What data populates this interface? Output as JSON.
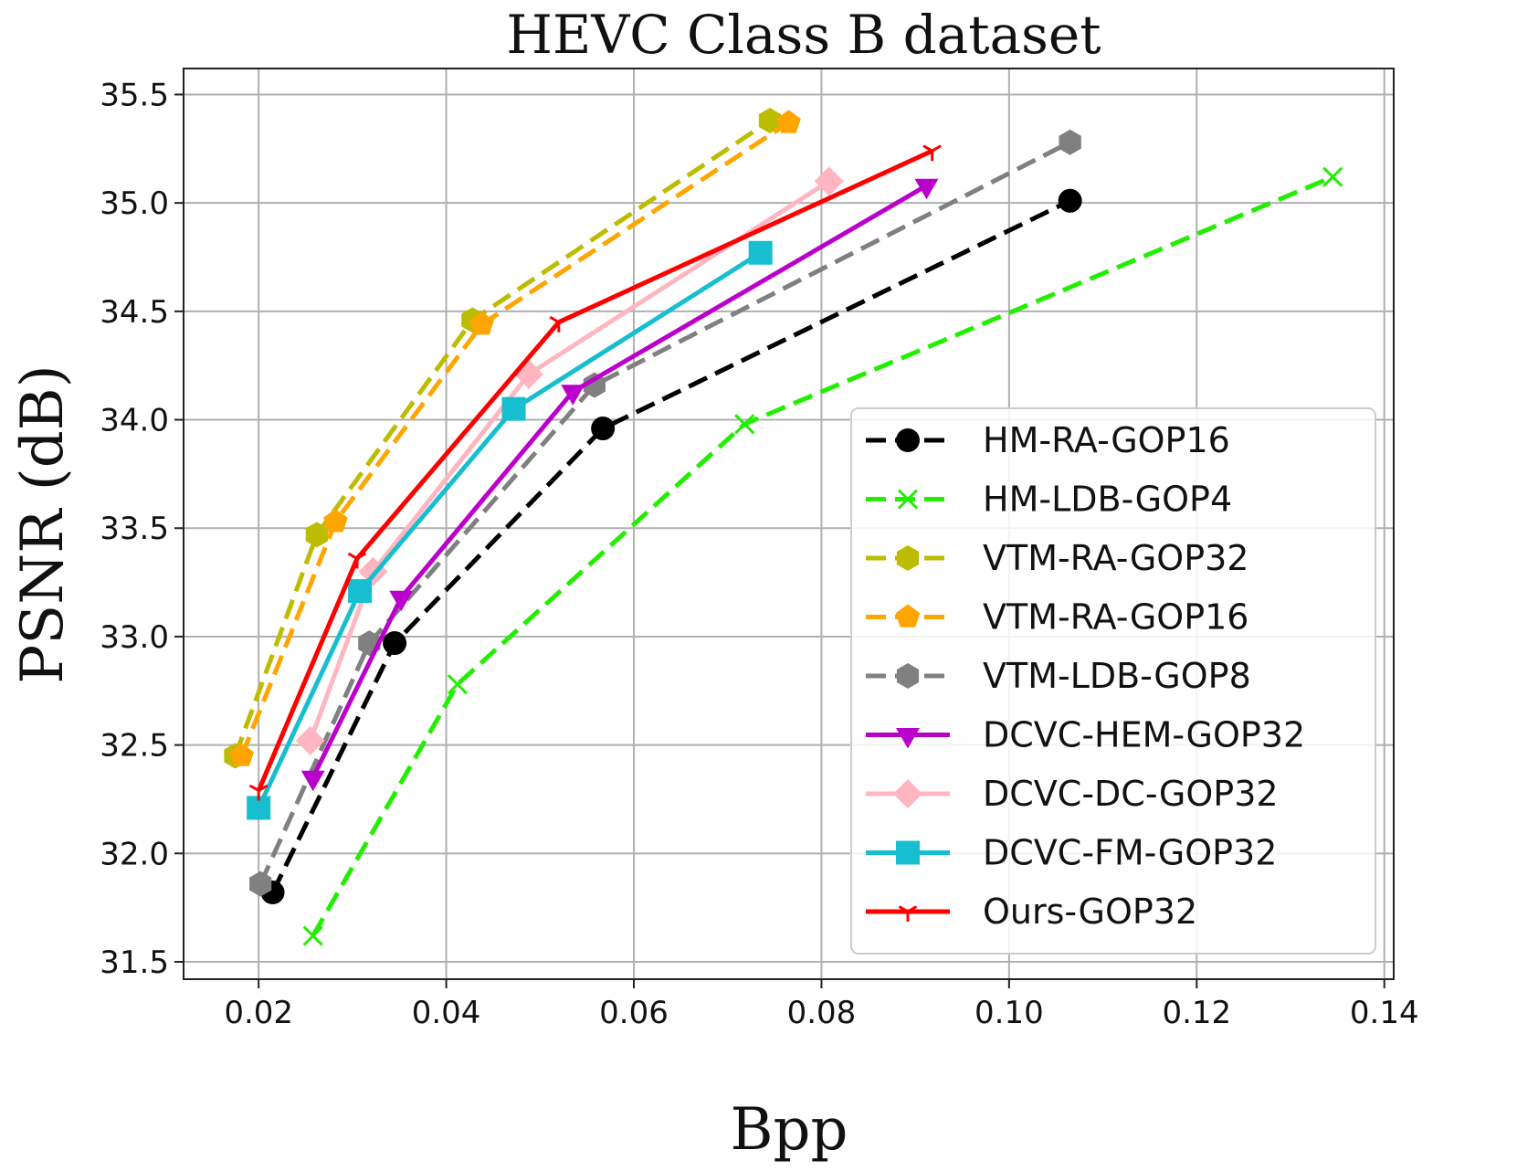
{
  "chart_data": {
    "type": "line",
    "title": "HEVC Class B dataset",
    "xlabel": "Bpp",
    "ylabel": "PSNR (dB)",
    "xlim": [
      0.012,
      0.141
    ],
    "ylim": [
      31.42,
      35.62
    ],
    "xticks": [
      0.02,
      0.04,
      0.06,
      0.08,
      0.1,
      0.12,
      0.14
    ],
    "xtick_labels": [
      "0.02",
      "0.04",
      "0.06",
      "0.08",
      "0.10",
      "0.12",
      "0.14"
    ],
    "yticks": [
      31.5,
      32.0,
      32.5,
      33.0,
      33.5,
      34.0,
      34.5,
      35.0,
      35.5
    ],
    "ytick_labels": [
      "31.5",
      "32.0",
      "32.5",
      "33.0",
      "33.5",
      "34.0",
      "34.5",
      "35.0",
      "35.5"
    ],
    "grid": true,
    "legend_position": "lower-right",
    "series": [
      {
        "name": "HM-RA-GOP16",
        "color": "#000000",
        "dash": "dashed",
        "marker": "circle",
        "x": [
          0.0215,
          0.0345,
          0.0567,
          0.1065
        ],
        "y": [
          31.82,
          32.97,
          33.96,
          35.01
        ]
      },
      {
        "name": "HM-LDB-GOP4",
        "color": "#22ee00",
        "dash": "dashed",
        "marker": "x",
        "x": [
          0.0258,
          0.0412,
          0.0718,
          0.1345
        ],
        "y": [
          31.62,
          32.78,
          33.98,
          35.12
        ]
      },
      {
        "name": "VTM-RA-GOP32",
        "color": "#bcbc00",
        "dash": "dashed",
        "marker": "hexagon",
        "x": [
          0.0175,
          0.0262,
          0.0428,
          0.0745
        ],
        "y": [
          32.45,
          33.47,
          34.46,
          35.38
        ]
      },
      {
        "name": "VTM-RA-GOP16",
        "color": "#ffa500",
        "dash": "dashed",
        "marker": "pentagon",
        "x": [
          0.0182,
          0.0282,
          0.0438,
          0.0765
        ],
        "y": [
          32.45,
          33.53,
          34.44,
          35.37
        ]
      },
      {
        "name": "VTM-LDB-GOP8",
        "color": "#808080",
        "dash": "dashed",
        "marker": "hexagon",
        "x": [
          0.0202,
          0.0318,
          0.0558,
          0.1065
        ],
        "y": [
          31.86,
          32.97,
          34.16,
          35.28
        ]
      },
      {
        "name": "DCVC-HEM-GOP32",
        "color": "#bb00cc",
        "dash": "solid",
        "marker": "triangle-down",
        "x": [
          0.0258,
          0.0352,
          0.0535,
          0.0912
        ],
        "y": [
          32.35,
          33.18,
          34.13,
          35.08
        ]
      },
      {
        "name": "DCVC-DC-GOP32",
        "color": "#ffb6c1",
        "dash": "solid",
        "marker": "diamond",
        "x": [
          0.0255,
          0.0322,
          0.0488,
          0.0808
        ],
        "y": [
          32.52,
          33.3,
          34.21,
          35.1
        ]
      },
      {
        "name": "DCVC-FM-GOP32",
        "color": "#17becf",
        "dash": "solid",
        "marker": "square",
        "x": [
          0.02,
          0.0308,
          0.0472,
          0.0735
        ],
        "y": [
          32.21,
          33.21,
          34.05,
          34.77
        ]
      },
      {
        "name": "Ours-GOP32",
        "color": "#ff0000",
        "dash": "solid",
        "marker": "tri-down",
        "x": [
          0.02,
          0.0305,
          0.052,
          0.0918
        ],
        "y": [
          32.29,
          33.36,
          34.45,
          35.24
        ]
      }
    ]
  }
}
